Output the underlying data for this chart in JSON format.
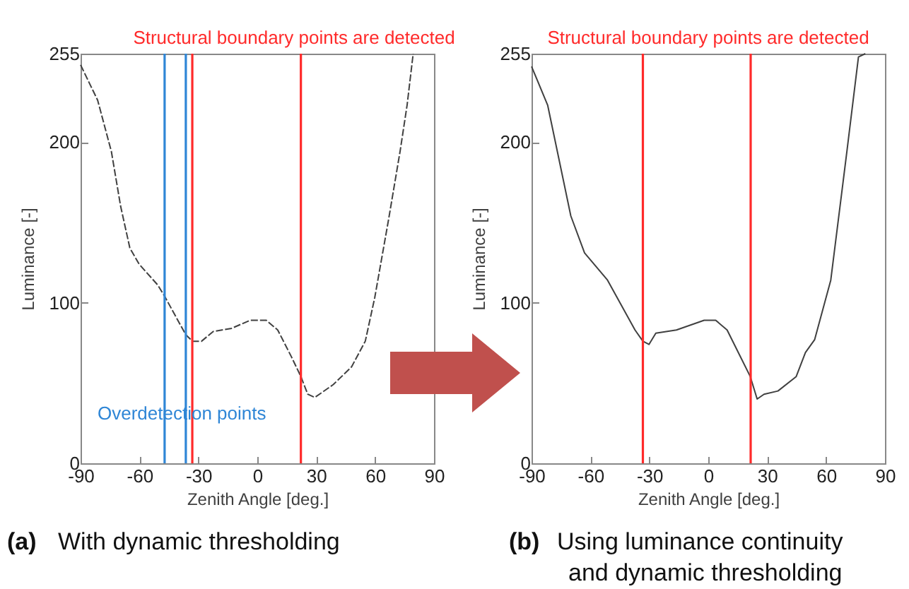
{
  "chart_data": [
    {
      "type": "line",
      "annotations": [
        "Structural boundary points are detected",
        "Overdetection points",
        "(a)  With dynamic thresholding"
      ],
      "xlabel": "Zenith Angle [deg.]",
      "ylabel": "Luminance [-]",
      "xlim": [
        -90,
        90
      ],
      "xticks": [
        -90,
        -60,
        -30,
        0,
        30,
        60,
        90
      ],
      "ylim": [
        0,
        255
      ],
      "yticks": [
        0,
        100,
        200,
        255
      ],
      "grid": false,
      "line_style": "dashed",
      "x": [
        -90,
        -81.3,
        -74.3,
        -69.6,
        -64.9,
        -60.2,
        -50.7,
        -47.2,
        -36.4,
        -33,
        -28.4,
        -22.5,
        -13.1,
        -3.7,
        4.6,
        10.4,
        17.5,
        22.2,
        25.7,
        29.3,
        38.7,
        48,
        55,
        59.8,
        66.9,
        72.7,
        76.3,
        79.4
      ],
      "series": [
        {
          "color": "#404040",
          "values": [
            248,
            226,
            194,
            160,
            134,
            124,
            111,
            104,
            80,
            76,
            76,
            82,
            84,
            89,
            89,
            83,
            66,
            54,
            43,
            41,
            49,
            60,
            76,
            103,
            152,
            194,
            223,
            255
          ]
        }
      ],
      "ref_lines": [
        {
          "axis": "x",
          "value": -47.2,
          "color": "#2f86d6"
        },
        {
          "axis": "x",
          "value": -36.4,
          "color": "#2f86d6"
        },
        {
          "axis": "x",
          "value": -33.1,
          "color": "#ff2a2a"
        },
        {
          "axis": "x",
          "value": 22.2,
          "color": "#ff2a2a"
        }
      ]
    },
    {
      "type": "line",
      "annotations": [
        "Structural boundary points are detected",
        "(b)  Using luminance continuity and dynamic thresholding"
      ],
      "xlabel": "Zenith Angle [deg.]",
      "ylabel": "Luminance [-]",
      "xlim": [
        -90,
        90
      ],
      "xticks": [
        -90,
        -60,
        -30,
        0,
        30,
        60,
        90
      ],
      "ylim": [
        0,
        255
      ],
      "yticks": [
        0,
        100,
        200,
        255
      ],
      "grid": false,
      "line_style": "solid",
      "x": [
        -90,
        -81.8,
        -70,
        -63,
        -51.3,
        -37.3,
        -33.3,
        -30.2,
        -26.7,
        -16.2,
        -2.1,
        3.8,
        9.6,
        21.4,
        24.9,
        28.4,
        35.5,
        44.8,
        49.5,
        54.2,
        62.4,
        70.6,
        76.5,
        80
      ],
      "series": [
        {
          "color": "#404040",
          "values": [
            247,
            223,
            154,
            131,
            114,
            83,
            76,
            74,
            81,
            83,
            89,
            89,
            83,
            54,
            40,
            43,
            45,
            54,
            69,
            77,
            114,
            194,
            253,
            255
          ]
        }
      ],
      "ref_lines": [
        {
          "axis": "x",
          "value": -33.3,
          "color": "#ff2a2a"
        },
        {
          "axis": "x",
          "value": 21.6,
          "color": "#ff2a2a"
        }
      ]
    }
  ]
}
